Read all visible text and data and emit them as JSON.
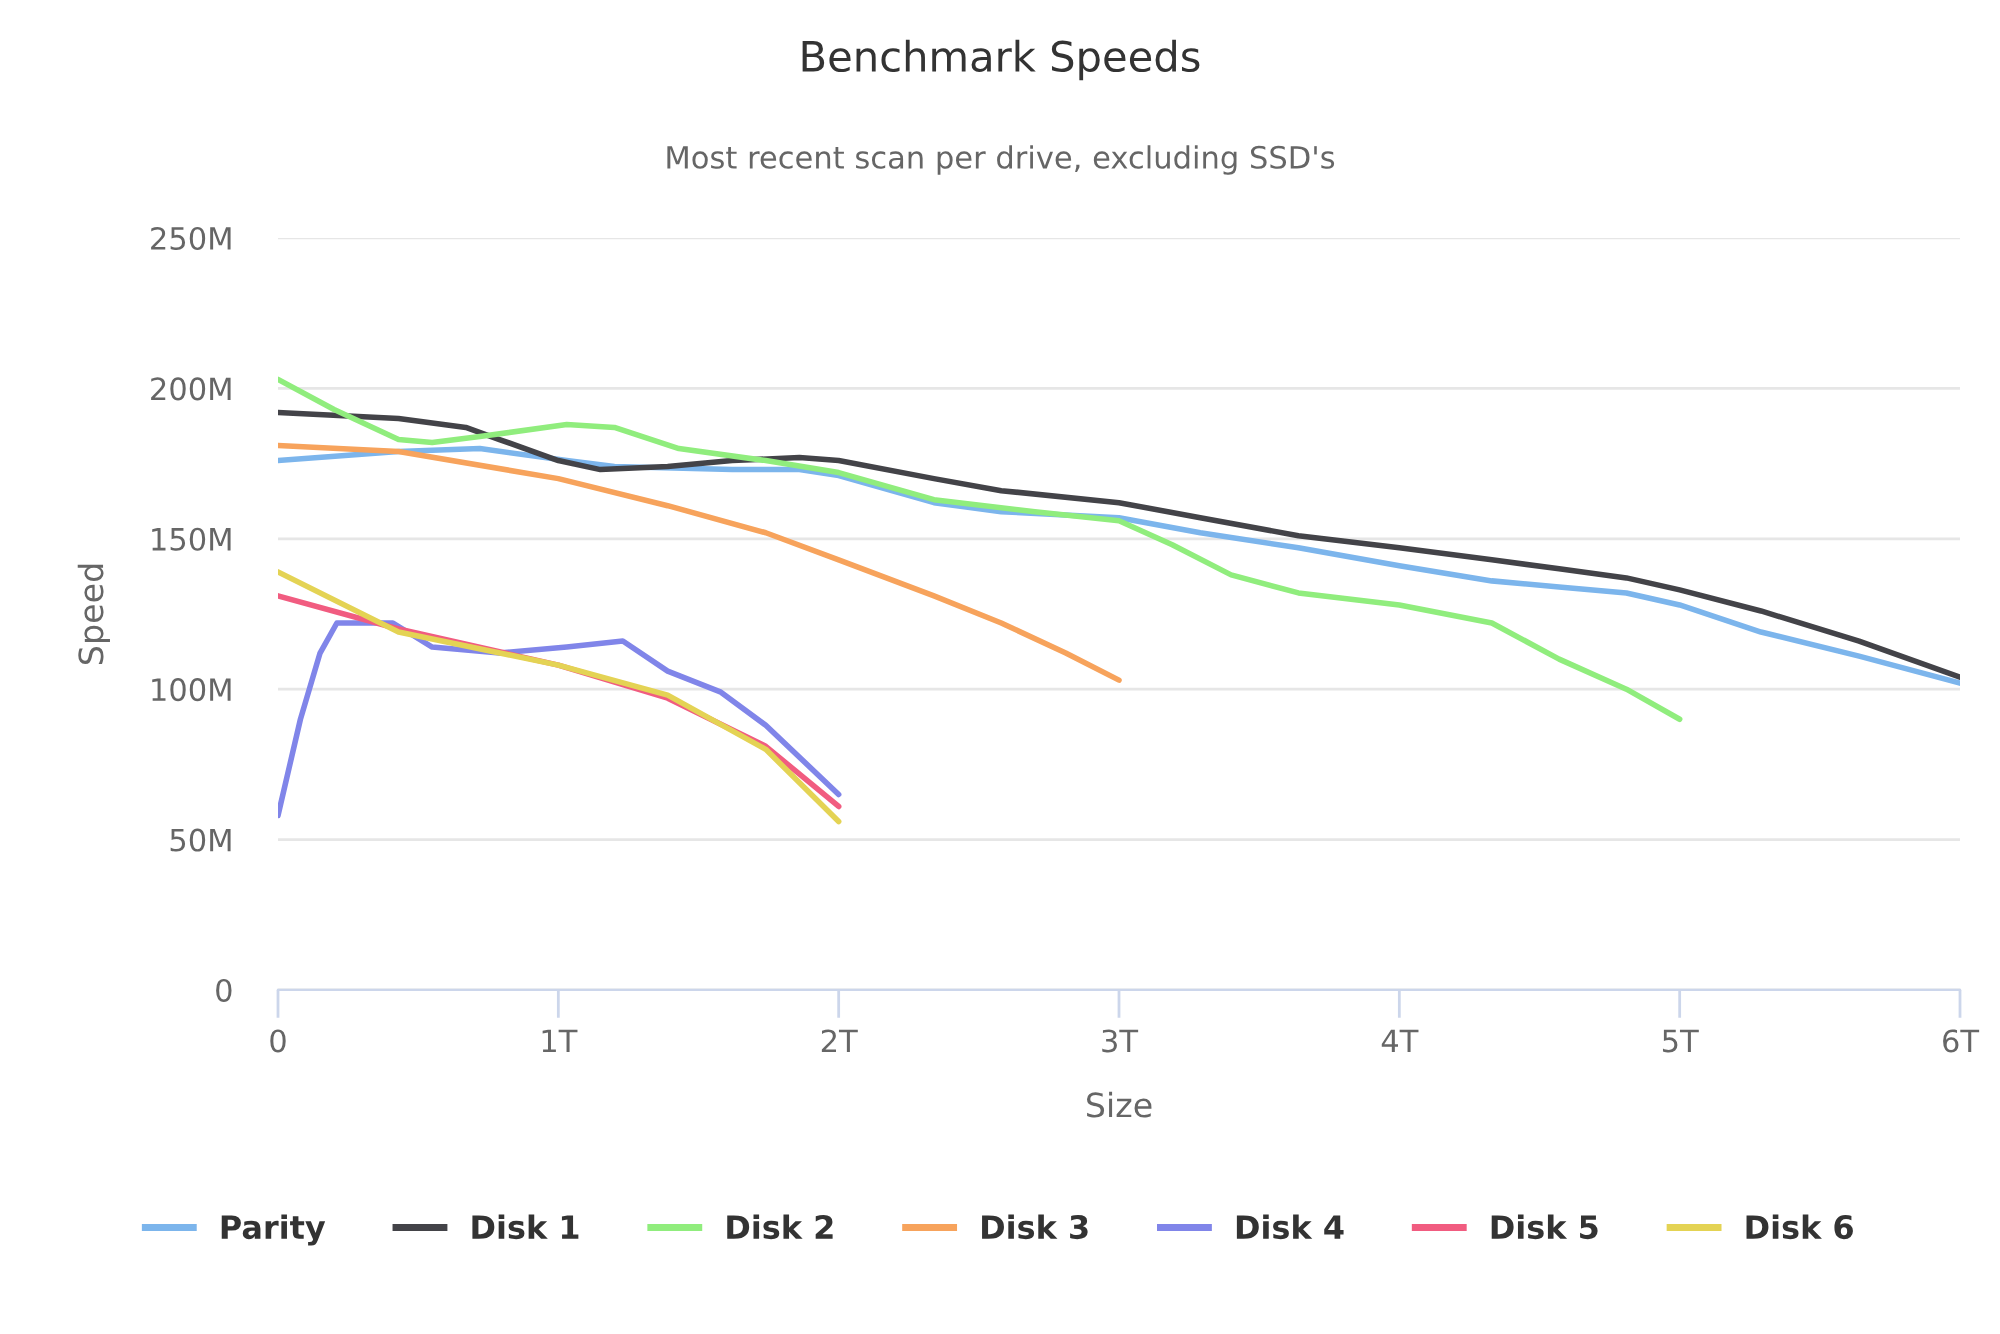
{
  "chart_data": {
    "type": "line",
    "title": "Benchmark Speeds",
    "subtitle": "Most recent scan per drive, excluding SSD's",
    "xlabel": "Size",
    "ylabel": "Speed",
    "xlim": [
      0,
      6
    ],
    "xticks": [
      0,
      {
        "value": 1,
        "label": "1T"
      },
      {
        "value": 2,
        "label": "2T"
      },
      {
        "value": 3,
        "label": "3T"
      },
      {
        "value": 4,
        "label": "4T"
      },
      {
        "value": 5,
        "label": "5T"
      },
      {
        "value": 6,
        "label": "6T"
      }
    ],
    "ylim": [
      0,
      250
    ],
    "yticks": [
      0,
      {
        "value": 50,
        "label": "50M"
      },
      {
        "value": 100,
        "label": "100M"
      },
      {
        "value": 150,
        "label": "150M"
      },
      {
        "value": 200,
        "label": "200M"
      },
      {
        "value": 250,
        "label": "250M"
      }
    ],
    "grid": "y",
    "legend": "bottom",
    "line_style": "solid",
    "series": [
      {
        "name": "Parity",
        "color": "#7cb5ec",
        "x": [
          0,
          0.43,
          0.72,
          1.03,
          1.2,
          1.62,
          1.86,
          2.0,
          2.34,
          2.58,
          3.0,
          3.29,
          3.64,
          4.0,
          4.33,
          4.57,
          4.81,
          5.0,
          5.29,
          5.64,
          6.0
        ],
        "values": [
          176,
          179,
          180,
          176,
          174,
          173,
          173,
          171,
          162,
          159,
          157,
          152,
          147,
          141,
          136,
          134,
          132,
          128,
          119,
          111,
          102
        ]
      },
      {
        "name": "Disk 1",
        "color": "#434348",
        "x": [
          0,
          0.43,
          0.67,
          0.79,
          1.0,
          1.15,
          1.39,
          1.62,
          1.86,
          2.0,
          2.34,
          2.58,
          3.0,
          3.29,
          3.64,
          4.0,
          4.33,
          4.57,
          4.81,
          5.0,
          5.29,
          5.64,
          6.0
        ],
        "values": [
          192,
          190,
          187,
          183,
          176,
          173,
          174,
          176,
          177,
          176,
          170,
          166,
          162,
          157,
          151,
          147,
          143,
          140,
          137,
          133,
          126,
          116,
          104
        ]
      },
      {
        "name": "Disk 2",
        "color": "#90ed7d",
        "x": [
          0,
          0.2,
          0.43,
          0.55,
          0.72,
          1.03,
          1.2,
          1.43,
          1.74,
          2.0,
          2.34,
          2.7,
          3.0,
          3.19,
          3.4,
          3.64,
          4.0,
          4.33,
          4.57,
          4.81,
          5.0
        ],
        "values": [
          203,
          193,
          183,
          182,
          184,
          188,
          187,
          180,
          176,
          172,
          163,
          159,
          156,
          148,
          138,
          132,
          128,
          122,
          110,
          100,
          90
        ]
      },
      {
        "name": "Disk 3",
        "color": "#f7a35c",
        "x": [
          0,
          0.43,
          1.0,
          1.39,
          1.74,
          2.0,
          2.34,
          2.58,
          2.81,
          3.0
        ],
        "values": [
          181,
          179,
          170,
          161,
          152,
          143,
          131,
          122,
          112,
          103
        ]
      },
      {
        "name": "Disk 4",
        "color": "#8085e9",
        "x": [
          0,
          0.08,
          0.15,
          0.21,
          0.41,
          0.55,
          0.79,
          1.03,
          1.23,
          1.39,
          1.58,
          1.74,
          2.0
        ],
        "values": [
          58,
          90,
          112,
          122,
          122,
          114,
          112,
          114,
          116,
          106,
          99,
          88,
          65
        ]
      },
      {
        "name": "Disk 5",
        "color": "#f15c80",
        "x": [
          0,
          0.43,
          1.0,
          1.39,
          1.74,
          2.0
        ],
        "values": [
          131,
          120,
          108,
          97,
          81,
          61
        ]
      },
      {
        "name": "Disk 6",
        "color": "#e4d354",
        "x": [
          0,
          0.43,
          1.0,
          1.39,
          1.74,
          2.0
        ],
        "values": [
          139,
          119,
          108,
          98,
          80,
          56
        ]
      }
    ]
  }
}
